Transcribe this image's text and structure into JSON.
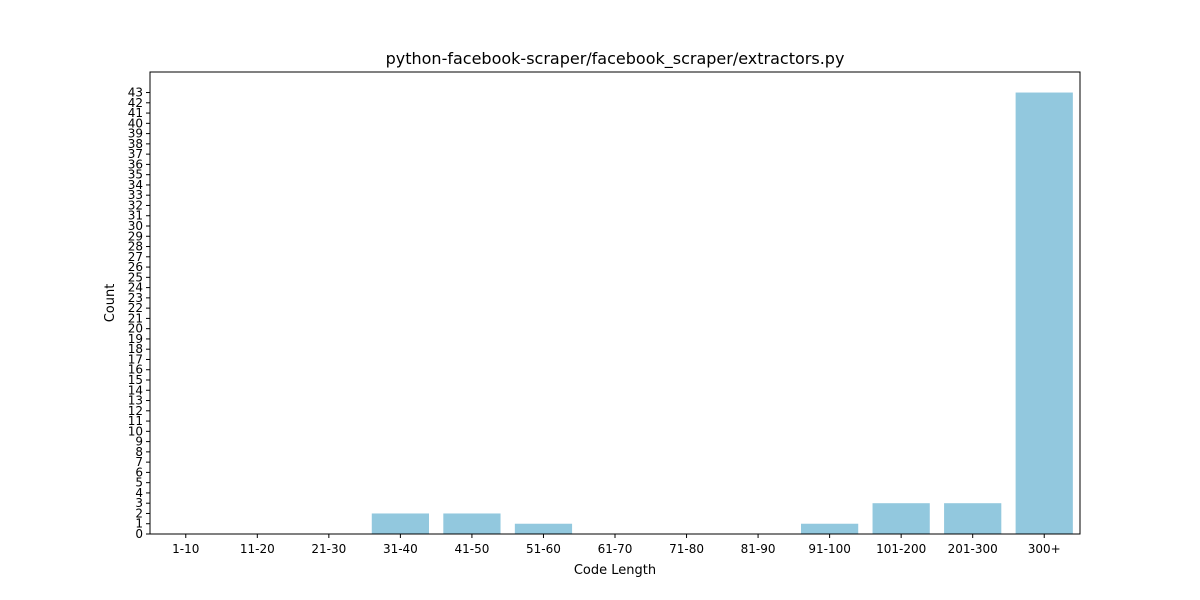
{
  "chart_data": {
    "type": "bar",
    "title": "python-facebook-scraper/facebook_scraper/extractors.py",
    "xlabel": "Code Length",
    "ylabel": "Count",
    "categories": [
      "1-10",
      "11-20",
      "21-30",
      "31-40",
      "41-50",
      "51-60",
      "61-70",
      "71-80",
      "81-90",
      "91-100",
      "101-200",
      "201-300",
      "300+"
    ],
    "values": [
      0,
      0,
      0,
      2,
      2,
      1,
      0,
      0,
      0,
      1,
      3,
      3,
      43
    ],
    "ylim": [
      0,
      45
    ],
    "yticks": [
      0,
      1,
      2,
      3,
      4,
      5,
      6,
      7,
      8,
      9,
      10,
      11,
      12,
      13,
      14,
      15,
      16,
      17,
      18,
      19,
      20,
      21,
      22,
      23,
      24,
      25,
      26,
      27,
      28,
      29,
      30,
      31,
      32,
      33,
      34,
      35,
      36,
      37,
      38,
      39,
      40,
      41,
      42,
      43
    ],
    "bar_color": "#92c8de",
    "grid": false,
    "legend": "none"
  }
}
